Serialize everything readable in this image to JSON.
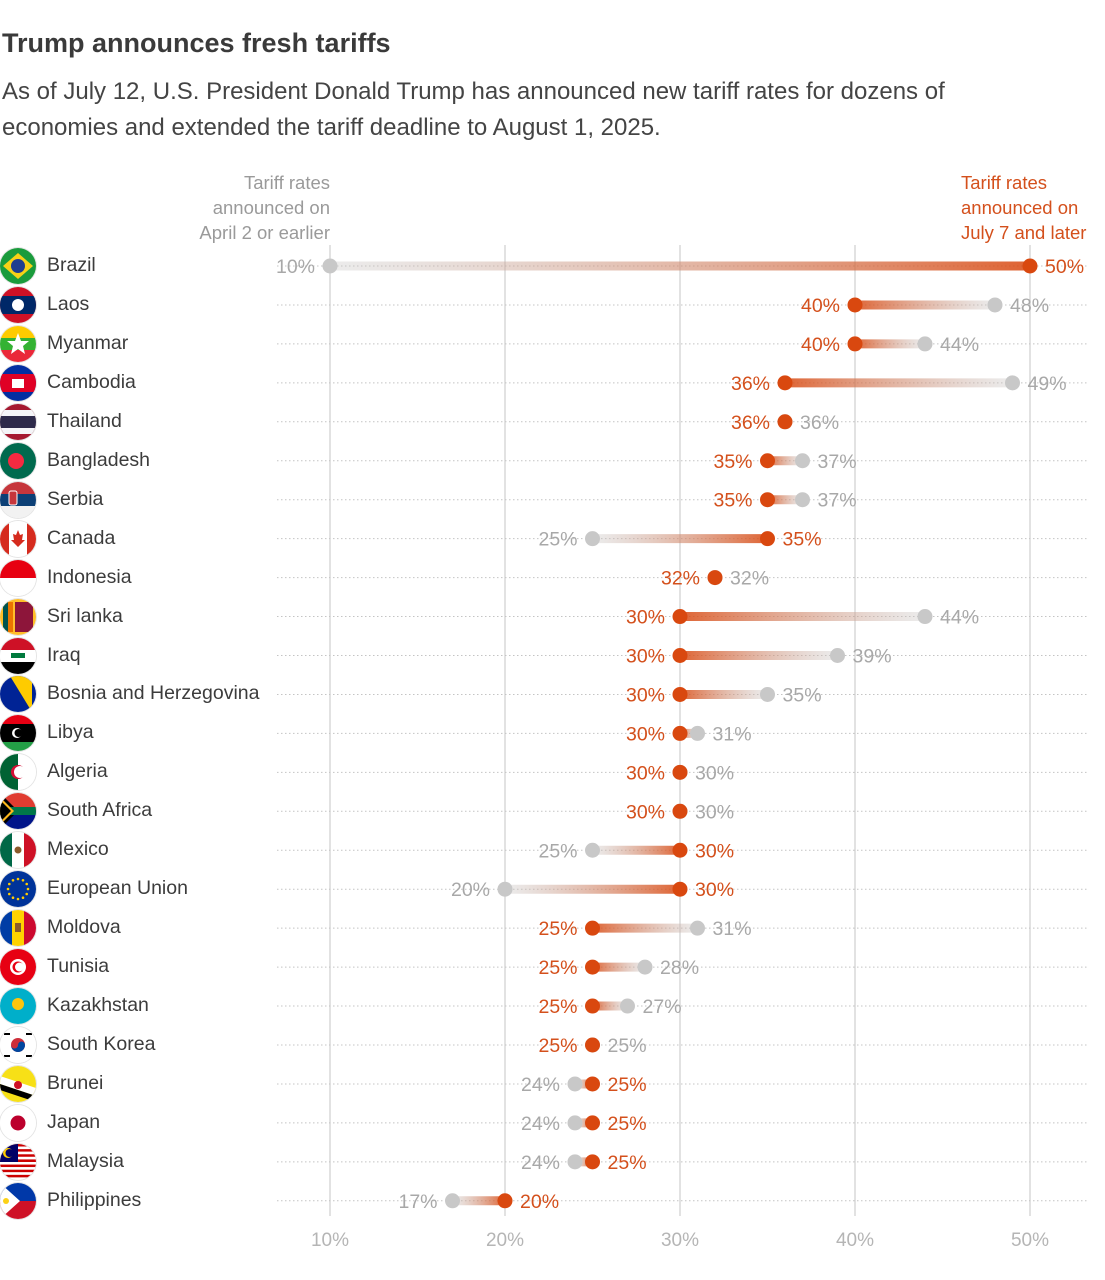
{
  "header": {
    "title": "Trump announces fresh tariffs",
    "subtitle": "As of July 12, U.S. President Donald Trump has announced new tariff rates for dozens of economies and extended the tariff deadline to August 1, 2025.",
    "legend_old": "Tariff rates\nannounced on\nApril 2 or earlier",
    "legend_new": "Tariff rates\nannounced on\nJuly 7 and later"
  },
  "colors": {
    "old": "#c8c8c8",
    "new": "#d9480f",
    "old_text": "#a8a8a8",
    "new_text": "#d4501c",
    "grid": "#cfcfcf"
  },
  "chart_data": {
    "type": "dumbbell",
    "x_ticks": [
      "10%",
      "20%",
      "30%",
      "40%",
      "50%"
    ],
    "xlim": [
      10,
      50
    ],
    "grid": true,
    "series": [
      {
        "name": "Tariff rates announced on April 2 or earlier"
      },
      {
        "name": "Tariff rates announced on July 7 and later"
      }
    ],
    "rows": [
      {
        "country": "Brazil",
        "flag": "brazil-flag",
        "old": 10,
        "new": 50,
        "old_label": "10%",
        "new_label": "50%"
      },
      {
        "country": "Laos",
        "flag": "laos-flag",
        "old": 48,
        "new": 40,
        "old_label": "48%",
        "new_label": "40%"
      },
      {
        "country": "Myanmar",
        "flag": "myanmar-flag",
        "old": 44,
        "new": 40,
        "old_label": "44%",
        "new_label": "40%"
      },
      {
        "country": "Cambodia",
        "flag": "cambodia-flag",
        "old": 49,
        "new": 36,
        "old_label": "49%",
        "new_label": "36%"
      },
      {
        "country": "Thailand",
        "flag": "thailand-flag",
        "old": 36,
        "new": 36,
        "old_label": "36%",
        "new_label": "36%"
      },
      {
        "country": "Bangladesh",
        "flag": "bangladesh-flag",
        "old": 37,
        "new": 35,
        "old_label": "37%",
        "new_label": "35%"
      },
      {
        "country": "Serbia",
        "flag": "serbia-flag",
        "old": 37,
        "new": 35,
        "old_label": "37%",
        "new_label": "35%"
      },
      {
        "country": "Canada",
        "flag": "canada-flag",
        "old": 25,
        "new": 35,
        "old_label": "25%",
        "new_label": "35%"
      },
      {
        "country": "Indonesia",
        "flag": "indonesia-flag",
        "old": 32,
        "new": 32,
        "old_label": "32%",
        "new_label": "32%"
      },
      {
        "country": "Sri lanka",
        "flag": "sri-lanka-flag",
        "old": 44,
        "new": 30,
        "old_label": "44%",
        "new_label": "30%"
      },
      {
        "country": "Iraq",
        "flag": "iraq-flag",
        "old": 39,
        "new": 30,
        "old_label": "39%",
        "new_label": "30%"
      },
      {
        "country": "Bosnia and Herzegovina",
        "flag": "bosnia-flag",
        "old": 35,
        "new": 30,
        "old_label": "35%",
        "new_label": "30%"
      },
      {
        "country": "Libya",
        "flag": "libya-flag",
        "old": 31,
        "new": 30,
        "old_label": "31%",
        "new_label": "30%"
      },
      {
        "country": "Algeria",
        "flag": "algeria-flag",
        "old": 30,
        "new": 30,
        "old_label": "30%",
        "new_label": "30%"
      },
      {
        "country": "South Africa",
        "flag": "south-africa-flag",
        "old": 30,
        "new": 30,
        "old_label": "30%",
        "new_label": "30%"
      },
      {
        "country": "Mexico",
        "flag": "mexico-flag",
        "old": 25,
        "new": 30,
        "old_label": "25%",
        "new_label": "30%"
      },
      {
        "country": "European Union",
        "flag": "eu-flag",
        "old": 20,
        "new": 30,
        "old_label": "20%",
        "new_label": "30%"
      },
      {
        "country": "Moldova",
        "flag": "moldova-flag",
        "old": 31,
        "new": 25,
        "old_label": "31%",
        "new_label": "25%"
      },
      {
        "country": "Tunisia",
        "flag": "tunisia-flag",
        "old": 28,
        "new": 25,
        "old_label": "28%",
        "new_label": "25%"
      },
      {
        "country": "Kazakhstan",
        "flag": "kazakhstan-flag",
        "old": 27,
        "new": 25,
        "old_label": "27%",
        "new_label": "25%"
      },
      {
        "country": "South Korea",
        "flag": "south-korea-flag",
        "old": 25,
        "new": 25,
        "old_label": "25%",
        "new_label": "25%"
      },
      {
        "country": "Brunei",
        "flag": "brunei-flag",
        "old": 24,
        "new": 25,
        "old_label": "24%",
        "new_label": "25%"
      },
      {
        "country": "Japan",
        "flag": "japan-flag",
        "old": 24,
        "new": 25,
        "old_label": "24%",
        "new_label": "25%"
      },
      {
        "country": "Malaysia",
        "flag": "malaysia-flag",
        "old": 24,
        "new": 25,
        "old_label": "24%",
        "new_label": "25%"
      },
      {
        "country": "Philippines",
        "flag": "philippines-flag",
        "old": 17,
        "new": 20,
        "old_label": "17%",
        "new_label": "20%"
      }
    ]
  }
}
